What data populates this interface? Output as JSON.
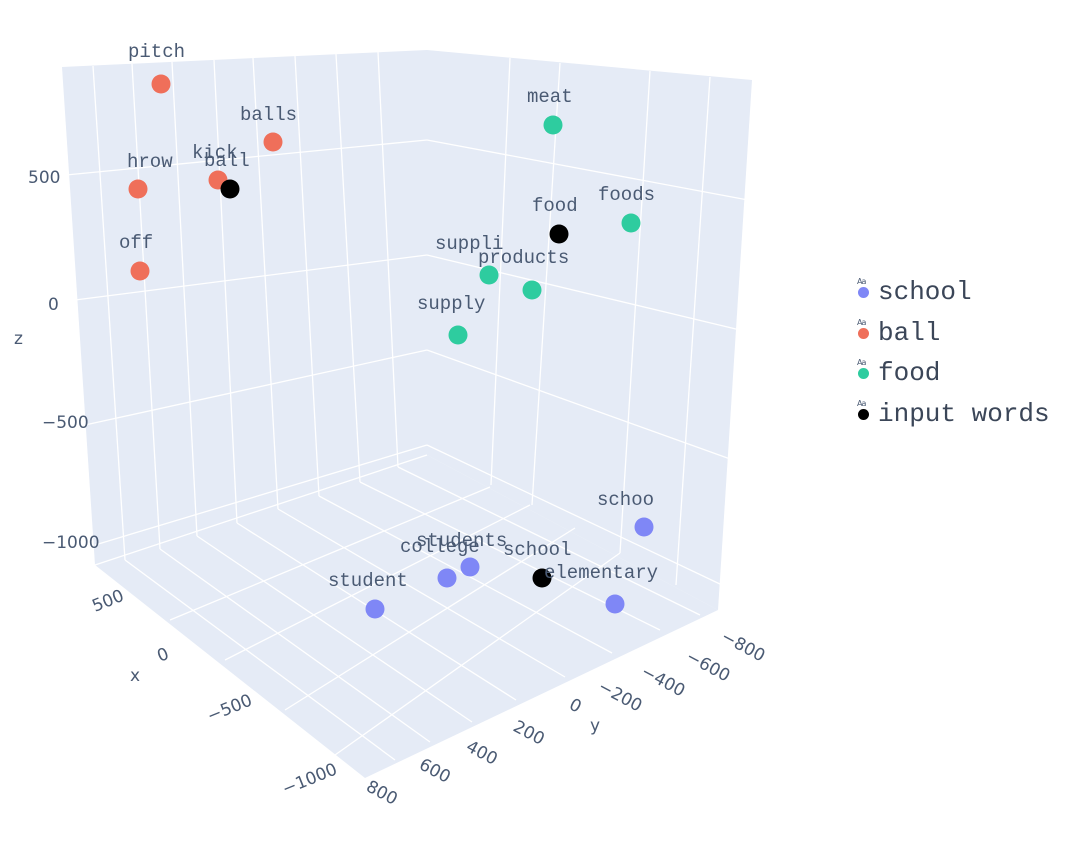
{
  "chart_data": {
    "type": "scatter3d",
    "title": "",
    "axes": {
      "x": {
        "label": "x",
        "ticks": [
          "500",
          "0",
          "−500",
          "−1000"
        ]
      },
      "y": {
        "label": "y",
        "ticks": [
          "800",
          "600",
          "400",
          "200",
          "0",
          "−200",
          "−400",
          "−600",
          "−800"
        ]
      },
      "z": {
        "label": "z",
        "ticks": [
          "500",
          "0",
          "−500",
          "−1000"
        ]
      }
    },
    "legend_position": "right",
    "series": [
      {
        "name": "school",
        "color": "#7f87f6",
        "points": [
          {
            "label": "schoo"
          },
          {
            "label": "students"
          },
          {
            "label": "college"
          },
          {
            "label": "student"
          },
          {
            "label": "elementary"
          }
        ]
      },
      {
        "name": "ball",
        "color": "#ef6f5a",
        "points": [
          {
            "label": "pitch"
          },
          {
            "label": "balls"
          },
          {
            "label": "hrow"
          },
          {
            "label": "kick"
          },
          {
            "label": "off"
          }
        ]
      },
      {
        "name": "food",
        "color": "#2ecc9f",
        "points": [
          {
            "label": "meat"
          },
          {
            "label": "foods"
          },
          {
            "label": "suppli"
          },
          {
            "label": "products"
          },
          {
            "label": "supply"
          }
        ]
      },
      {
        "name": "input words",
        "color": "#000000",
        "points": [
          {
            "label": "ball"
          },
          {
            "label": "food"
          },
          {
            "label": "school"
          }
        ]
      }
    ]
  },
  "legend": {
    "glyph": "Aa",
    "items": [
      {
        "label": "school",
        "color": "#7f87f6"
      },
      {
        "label": "ball",
        "color": "#ef6f5a"
      },
      {
        "label": "food",
        "color": "#2ecc9f"
      },
      {
        "label": "input words",
        "color": "#000000"
      }
    ]
  }
}
